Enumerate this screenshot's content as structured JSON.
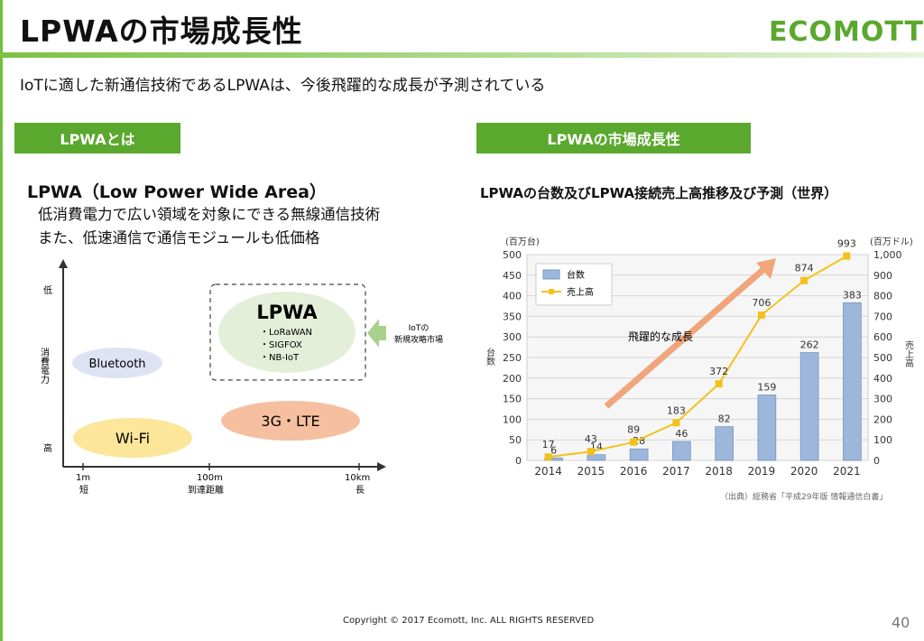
{
  "header": {
    "title": "LPWAの市場成長性",
    "logo_text": "ECOMOTT"
  },
  "subtitle": "IoTに適した新通信技術であるLPWAは、今後飛躍的な成長が予測されている",
  "left_section": {
    "tab_label": "LPWAとは",
    "heading": "LPWA（Low Power Wide Area）",
    "lines": [
      "低消費電力で広い領域を対象にできる無線通信技術",
      "また、低速通信で通信モジュールも低価格"
    ],
    "diagram": {
      "y_top": "低",
      "y_label": "消費電力",
      "y_bottom": "高",
      "x_ticks": [
        "1m",
        "100m",
        "10km"
      ],
      "x_left": "短",
      "x_label": "到達距離",
      "x_right": "長",
      "bubbles": {
        "bluetooth": "Bluetooth",
        "wifi": "Wi-Fi",
        "lte": "3G・LTE",
        "lpwa_title": "LPWA",
        "lpwa_items": [
          "・LoRaWAN",
          "・SIGFOX",
          "・NB-IoT"
        ]
      },
      "arrow_label_1": "IoTの",
      "arrow_label_2": "新規攻略市場"
    }
  },
  "right_section": {
    "tab_label": "LPWAの市場成長性",
    "chart_heading": "LPWAの台数及びLPWA接続売上高推移及び予測（世界）",
    "source": "（出典）総務省「平成29年版 情報通信白書」"
  },
  "chart_data": {
    "type": "bar",
    "categories": [
      "2014",
      "2015",
      "2016",
      "2017",
      "2018",
      "2019",
      "2020",
      "2021"
    ],
    "series": [
      {
        "name": "台数",
        "type": "bar",
        "axis": "left",
        "values": [
          6,
          14,
          28,
          46,
          82,
          159,
          262,
          383
        ]
      },
      {
        "name": "売上高",
        "type": "line",
        "axis": "right",
        "values": [
          17,
          43,
          89,
          183,
          372,
          706,
          874,
          993
        ]
      }
    ],
    "ylabel": "台数",
    "ylabel_unit": "(百万台)",
    "y2label": "売上高",
    "y2label_unit": "(百万ドル)",
    "ylim": [
      0,
      500
    ],
    "y2lim": [
      0,
      1000
    ],
    "yticks": [
      "0",
      "50",
      "100",
      "150",
      "200",
      "250",
      "300",
      "350",
      "400",
      "450",
      "500"
    ],
    "y2ticks": [
      "0",
      "100",
      "200",
      "300",
      "400",
      "500",
      "600",
      "700",
      "800",
      "900",
      "1,000"
    ],
    "annotation": "飛躍的な成長",
    "legend_position": "top-left",
    "grid": true,
    "colors": {
      "bar": "#9cb6dc",
      "line": "#f2c21b",
      "arrow": "#f0a57a"
    }
  },
  "footer": {
    "copyright": "Copyright © 2017 Ecomott, Inc. ALL RIGHTS RESERVED",
    "page": "40"
  }
}
